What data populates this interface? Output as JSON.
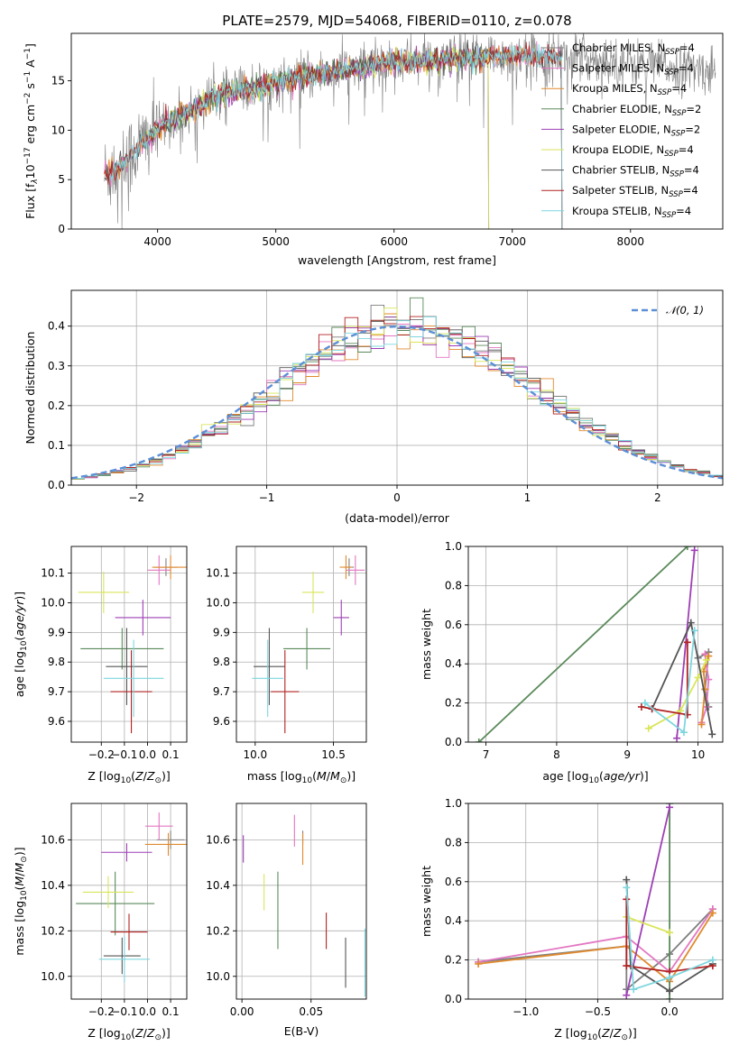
{
  "figure_title": "PLATE=2579, MJD=54068, FIBERID=0110, z=0.078",
  "series_names": [
    "Chabrier MILES",
    "Salpeter MILES",
    "Kroupa MILES",
    "Chabrier ELODIE",
    "Salpeter ELODIE",
    "Kroupa ELODIE",
    "Chabrier STELIB",
    "Salpeter STELIB",
    "Kroupa STELIB"
  ],
  "legend_suffix": [
    "N",
    "SSP",
    "=4",
    "N",
    "SSP",
    "=4",
    "N",
    "SSP",
    "=4",
    "N",
    "SSP",
    "=2",
    "N",
    "SSP",
    "=2",
    "N",
    "SSP",
    "=4",
    "N",
    "SSP",
    "=4",
    "N",
    "SSP",
    "=4",
    "N",
    "SSP",
    "=4"
  ],
  "legend_nssp": [
    4,
    4,
    4,
    2,
    2,
    4,
    4,
    4,
    4
  ],
  "colors": [
    "#7f7f7f",
    "#e377c2",
    "#ff7f0e",
    "#2ca02c",
    "#9467bd",
    "#dbdb8d",
    "#555555",
    "#d62728",
    "#17becf"
  ],
  "plot_colors": [
    "#7f7f7f",
    "#e377c2",
    "#e08a2d",
    "#5b8a5b",
    "#9e3fb5",
    "#d9e55a",
    "#555555",
    "#b22222",
    "#7fd6df"
  ],
  "chart_data": [
    {
      "id": "spectrum",
      "type": "line",
      "title": "PLATE=2579, MJD=54068, FIBERID=0110, z=0.078",
      "xlabel": "wavelength [Angstrom, rest frame]",
      "ylabel_parts": [
        "Flux [f",
        "λ",
        "10",
        "−17",
        " erg cm",
        "−2",
        " s",
        "−1",
        " A",
        "−1",
        "]"
      ],
      "xlim": [
        3270,
        8780
      ],
      "ylim": [
        0,
        19.8
      ],
      "xticks": [
        4000,
        5000,
        6000,
        7000,
        8000
      ],
      "yticks": [
        0,
        5,
        10,
        15
      ],
      "grid": false,
      "legend_position": "right",
      "continuum_points": [
        [
          3550,
          5.5
        ],
        [
          3700,
          6.5
        ],
        [
          3850,
          8.5
        ],
        [
          3950,
          9.5
        ],
        [
          4100,
          11.0
        ],
        [
          4300,
          12.0
        ],
        [
          4500,
          13.5
        ],
        [
          4700,
          14.0
        ],
        [
          4900,
          14.5
        ],
        [
          5100,
          15.0
        ],
        [
          5300,
          15.5
        ],
        [
          5500,
          16.0
        ],
        [
          5800,
          16.5
        ],
        [
          6000,
          17.0
        ],
        [
          6200,
          17.0
        ],
        [
          6500,
          17.2
        ],
        [
          6800,
          17.5
        ],
        [
          7000,
          17.5
        ],
        [
          7200,
          17.5
        ],
        [
          7420,
          17.5
        ]
      ],
      "data_x_range": [
        3550,
        8720
      ],
      "data_noise": 1.2
    },
    {
      "id": "residuals",
      "type": "area",
      "xlabel": "(data-model)/error",
      "ylabel": "Normed distribution",
      "xlim": [
        -2.5,
        2.5
      ],
      "ylim": [
        0,
        0.49
      ],
      "xticks": [
        -2,
        -1,
        0,
        1,
        2
      ],
      "yticks": [
        0.0,
        0.1,
        0.2,
        0.3,
        0.4
      ],
      "grid": true,
      "legend_position": "top-right",
      "reference_curve": "𝒩(0, 1)",
      "bin_width": 0.1
    },
    {
      "id": "age-vs-Z",
      "type": "scatter",
      "xlabel": "Z [log10(Z/Z⊙)]",
      "ylabel": "age  [log10(age/yr)]",
      "xlim": [
        -0.33,
        0.17
      ],
      "ylim": [
        9.53,
        10.19
      ],
      "xticks": [
        -0.2,
        -0.1,
        0.0,
        0.1
      ],
      "yticks": [
        9.6,
        9.7,
        9.8,
        9.9,
        10.0,
        10.1
      ],
      "grid": true,
      "points": [
        {
          "x": 0.08,
          "xerr": 0.05,
          "y": 10.12,
          "yerr": 0.03
        },
        {
          "x": 0.05,
          "xerr": 0.05,
          "y": 10.11,
          "yerr": 0.05
        },
        {
          "x": 0.1,
          "xerr": 0.08,
          "y": 10.12,
          "yerr": 0.04
        },
        {
          "x": -0.11,
          "xerr": 0.18,
          "y": 9.845,
          "yerr": 0.07
        },
        {
          "x": -0.02,
          "xerr": 0.12,
          "y": 9.95,
          "yerr": 0.06
        },
        {
          "x": -0.19,
          "xerr": 0.11,
          "y": 10.035,
          "yerr": 0.07
        },
        {
          "x": -0.09,
          "xerr": 0.09,
          "y": 9.785,
          "yerr": 0.13
        },
        {
          "x": -0.07,
          "xerr": 0.09,
          "y": 9.7,
          "yerr": 0.14
        },
        {
          "x": -0.06,
          "xerr": 0.13,
          "y": 9.745,
          "yerr": 0.13
        }
      ]
    },
    {
      "id": "age-vs-mass",
      "type": "scatter",
      "xlabel": "mass [log10(M/M⊙)]",
      "xlim": [
        9.88,
        10.71
      ],
      "ylim": [
        9.53,
        10.19
      ],
      "xticks": [
        10.0,
        10.5
      ],
      "yticks": [
        9.6,
        9.7,
        9.8,
        9.9,
        10.0,
        10.1
      ],
      "grid": true,
      "points": [
        {
          "x": 10.6,
          "xerr": 0.03,
          "y": 10.12,
          "yerr": 0.03
        },
        {
          "x": 10.64,
          "xerr": 0.06,
          "y": 10.11,
          "yerr": 0.05
        },
        {
          "x": 10.58,
          "xerr": 0.04,
          "y": 10.12,
          "yerr": 0.04
        },
        {
          "x": 10.33,
          "xerr": 0.15,
          "y": 9.845,
          "yerr": 0.07
        },
        {
          "x": 10.55,
          "xerr": 0.05,
          "y": 9.95,
          "yerr": 0.06
        },
        {
          "x": 10.37,
          "xerr": 0.07,
          "y": 10.035,
          "yerr": 0.07
        },
        {
          "x": 10.09,
          "xerr": 0.1,
          "y": 9.785,
          "yerr": 0.13
        },
        {
          "x": 10.19,
          "xerr": 0.09,
          "y": 9.7,
          "yerr": 0.14
        },
        {
          "x": 10.08,
          "xerr": 0.1,
          "y": 9.745,
          "yerr": 0.13
        }
      ]
    },
    {
      "id": "weights-vs-age",
      "type": "line",
      "xlabel": "age  [log10(age/yr)]",
      "ylabel": "mass weight",
      "xlim": [
        6.75,
        10.35
      ],
      "ylim": [
        0,
        1.0
      ],
      "xticks": [
        7,
        8,
        9,
        10
      ],
      "yticks": [
        0.0,
        0.2,
        0.4,
        0.6,
        0.8,
        1.0
      ],
      "grid": true,
      "series": [
        {
          "points": [
            [
              10.0,
              0.43
            ],
            [
              10.15,
              0.46
            ],
            [
              10.1,
              0.27
            ],
            [
              10.15,
              0.18
            ]
          ]
        },
        {
          "points": [
            [
              10.1,
              0.45
            ],
            [
              10.15,
              0.32
            ],
            [
              10.12,
              0.18
            ],
            [
              10.05,
              0.1
            ]
          ]
        },
        {
          "points": [
            [
              10.15,
              0.44
            ],
            [
              10.08,
              0.36
            ],
            [
              10.1,
              0.27
            ],
            [
              10.05,
              0.09
            ]
          ]
        },
        {
          "points": [
            [
              6.9,
              0.0
            ],
            [
              9.85,
              1.0
            ]
          ]
        },
        {
          "points": [
            [
              9.7,
              0.02
            ],
            [
              9.95,
              0.98
            ]
          ]
        },
        {
          "points": [
            [
              9.3,
              0.07
            ],
            [
              9.75,
              0.16
            ],
            [
              10.0,
              0.33
            ],
            [
              10.12,
              0.42
            ]
          ]
        },
        {
          "points": [
            [
              9.35,
              0.17
            ],
            [
              9.9,
              0.61
            ],
            [
              10.2,
              0.04
            ]
          ]
        },
        {
          "points": [
            [
              9.2,
              0.18
            ],
            [
              9.35,
              0.17
            ],
            [
              9.85,
              0.14
            ],
            [
              9.85,
              0.51
            ]
          ]
        },
        {
          "points": [
            [
              9.25,
              0.2
            ],
            [
              9.8,
              0.05
            ],
            [
              9.95,
              0.57
            ]
          ]
        }
      ]
    },
    {
      "id": "mass-vs-Z",
      "type": "scatter",
      "xlabel": "Z [log10(Z/Z⊙)]",
      "ylabel": "mass [log10(M/M⊙)]",
      "xlim": [
        -0.33,
        0.17
      ],
      "ylim": [
        9.9,
        10.76
      ],
      "xticks": [
        -0.2,
        -0.1,
        0.0,
        0.1
      ],
      "yticks": [
        10.0,
        10.2,
        10.4,
        10.6
      ],
      "grid": true,
      "points": [
        {
          "x": 0.1,
          "xerr": 0.06,
          "y": 10.6,
          "yerr": 0.04
        },
        {
          "x": 0.05,
          "xerr": 0.06,
          "y": 10.66,
          "yerr": 0.06
        },
        {
          "x": 0.09,
          "xerr": 0.1,
          "y": 10.58,
          "yerr": 0.05
        },
        {
          "x": -0.14,
          "xerr": 0.17,
          "y": 10.32,
          "yerr": 0.14
        },
        {
          "x": -0.09,
          "xerr": 0.11,
          "y": 10.545,
          "yerr": 0.04
        },
        {
          "x": -0.17,
          "xerr": 0.11,
          "y": 10.37,
          "yerr": 0.07
        },
        {
          "x": -0.11,
          "xerr": 0.08,
          "y": 10.09,
          "yerr": 0.08
        },
        {
          "x": -0.08,
          "xerr": 0.08,
          "y": 10.195,
          "yerr": 0.08
        },
        {
          "x": -0.1,
          "xerr": 0.11,
          "y": 10.075,
          "yerr": 0.1
        }
      ]
    },
    {
      "id": "mass-vs-EBV",
      "type": "scatter",
      "xlabel": "E(B-V)",
      "xlim": [
        -0.004,
        0.09
      ],
      "ylim": [
        9.9,
        10.76
      ],
      "xticks": [
        0.0,
        0.05
      ],
      "yticks": [
        10.0,
        10.2,
        10.4,
        10.6
      ],
      "grid": true,
      "points": [
        {
          "x": 0.044,
          "y": 10.61,
          "yerr": 0.03
        },
        {
          "x": 0.038,
          "y": 10.64,
          "yerr": 0.07
        },
        {
          "x": 0.044,
          "y": 10.56,
          "yerr": 0.07
        },
        {
          "x": 0.026,
          "y": 10.29,
          "yerr": 0.17
        },
        {
          "x": 0.001,
          "y": 10.56,
          "yerr": 0.06
        },
        {
          "x": 0.016,
          "y": 10.37,
          "yerr": 0.08
        },
        {
          "x": 0.075,
          "y": 10.06,
          "yerr": 0.11
        },
        {
          "x": 0.061,
          "y": 10.2,
          "yerr": 0.08
        },
        {
          "x": 0.089,
          "y": 10.06,
          "yerr": 0.15
        }
      ]
    },
    {
      "id": "weights-vs-Z",
      "type": "line",
      "xlabel": "Z [log10(Z/Z⊙)]",
      "ylabel": "mass weight",
      "xlim": [
        -1.4,
        0.37
      ],
      "ylim": [
        0,
        1.0
      ],
      "xticks": [
        -1.0,
        -0.5,
        0.0
      ],
      "yticks": [
        0.0,
        0.2,
        0.4,
        0.6,
        0.8,
        1.0
      ],
      "grid": true,
      "series": [
        {
          "points": [
            [
              -1.33,
              0.19
            ],
            [
              -0.3,
              0.27
            ],
            [
              -0.3,
              0.05
            ],
            [
              0.0,
              0.23
            ],
            [
              0.3,
              0.46
            ]
          ]
        },
        {
          "points": [
            [
              -1.33,
              0.19
            ],
            [
              -0.3,
              0.32
            ],
            [
              0.0,
              0.14
            ],
            [
              0.3,
              0.46
            ]
          ]
        },
        {
          "points": [
            [
              -1.33,
              0.18
            ],
            [
              -0.3,
              0.27
            ],
            [
              0.0,
              0.09
            ],
            [
              0.3,
              0.44
            ]
          ]
        },
        {
          "points": [
            [
              0.0,
              0.0
            ],
            [
              0.0,
              1.0
            ]
          ]
        },
        {
          "points": [
            [
              -0.3,
              0.02
            ],
            [
              0.0,
              0.98
            ]
          ]
        },
        {
          "points": [
            [
              -0.3,
              0.42
            ],
            [
              0.0,
              0.34
            ]
          ]
        },
        {
          "points": [
            [
              -0.3,
              0.61
            ],
            [
              -0.27,
              0.17
            ],
            [
              0.0,
              0.04
            ],
            [
              0.3,
              0.18
            ]
          ]
        },
        {
          "points": [
            [
              -0.3,
              0.51
            ],
            [
              -0.3,
              0.17
            ],
            [
              0.0,
              0.14
            ],
            [
              0.3,
              0.17
            ]
          ]
        },
        {
          "points": [
            [
              -0.3,
              0.57
            ],
            [
              -0.25,
              0.05
            ],
            [
              0.0,
              0.11
            ],
            [
              0.3,
              0.2
            ]
          ]
        }
      ]
    }
  ]
}
